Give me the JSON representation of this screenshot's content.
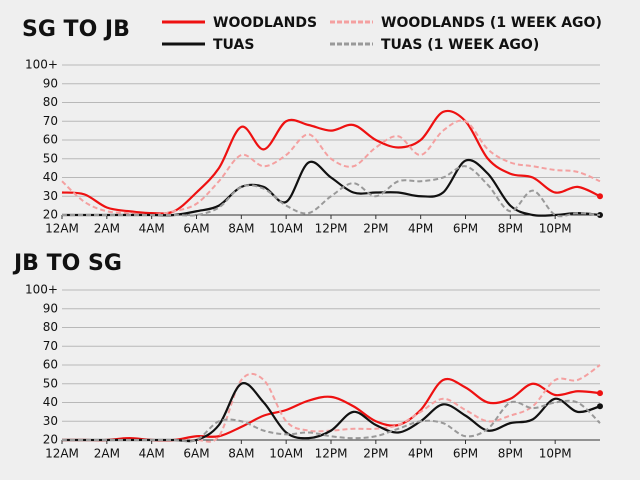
{
  "chart_data": [
    {
      "type": "line",
      "title": "SG TO JB",
      "x": [
        0,
        1,
        2,
        3,
        4,
        5,
        6,
        7,
        8,
        9,
        10,
        11,
        12,
        13,
        14,
        15,
        16,
        17,
        18,
        19,
        20,
        21,
        22,
        23,
        24
      ],
      "xlim": [
        0,
        24
      ],
      "xticks": [
        {
          "value": 0,
          "label": "12AM"
        },
        {
          "value": 2,
          "label": "2AM"
        },
        {
          "value": 4,
          "label": "4AM"
        },
        {
          "value": 6,
          "label": "6AM"
        },
        {
          "value": 8,
          "label": "8AM"
        },
        {
          "value": 10,
          "label": "10AM"
        },
        {
          "value": 12,
          "label": "12PM"
        },
        {
          "value": 14,
          "label": "2PM"
        },
        {
          "value": 16,
          "label": "4PM"
        },
        {
          "value": 18,
          "label": "6PM"
        },
        {
          "value": 20,
          "label": "8PM"
        },
        {
          "value": 22,
          "label": "10PM"
        }
      ],
      "ylim": [
        20,
        100
      ],
      "yticks": [
        20,
        30,
        40,
        50,
        60,
        70,
        80,
        90,
        {
          "value": 100,
          "label": "100+"
        }
      ],
      "grid": true,
      "series": [
        {
          "name": "WOODLANDS",
          "color": "#ee1111",
          "dashed": false,
          "values": [
            32,
            31,
            24,
            22,
            21,
            22,
            32,
            45,
            67,
            55,
            70,
            68,
            65,
            68,
            60,
            56,
            60,
            75,
            70,
            50,
            42,
            40,
            32,
            35,
            30
          ]
        },
        {
          "name": "WOODLANDS (1 WEEK AGO)",
          "color": "#f4a0a0",
          "dashed": true,
          "values": [
            38,
            27,
            22,
            21,
            20,
            22,
            26,
            38,
            52,
            46,
            52,
            63,
            50,
            46,
            56,
            62,
            52,
            65,
            70,
            55,
            48,
            46,
            44,
            43,
            38
          ]
        },
        {
          "name": "TUAS",
          "color": "#111111",
          "dashed": false,
          "values": [
            20,
            20,
            20,
            20,
            20,
            20,
            22,
            25,
            35,
            35,
            27,
            48,
            40,
            32,
            32,
            32,
            30,
            32,
            49,
            42,
            25,
            20,
            20,
            21,
            20
          ]
        },
        {
          "name": "TUAS (1 WEEK AGO)",
          "color": "#999999",
          "dashed": true,
          "values": [
            20,
            20,
            20,
            20,
            20,
            20,
            20,
            24,
            35,
            34,
            25,
            21,
            30,
            37,
            30,
            38,
            38,
            40,
            46,
            36,
            22,
            33,
            20,
            21,
            20
          ]
        }
      ]
    },
    {
      "type": "line",
      "title": "JB TO SG",
      "x": [
        0,
        1,
        2,
        3,
        4,
        5,
        6,
        7,
        8,
        9,
        10,
        11,
        12,
        13,
        14,
        15,
        16,
        17,
        18,
        19,
        20,
        21,
        22,
        23,
        24
      ],
      "xlim": [
        0,
        24
      ],
      "xticks": [
        {
          "value": 0,
          "label": "12AM"
        },
        {
          "value": 2,
          "label": "2AM"
        },
        {
          "value": 4,
          "label": "4AM"
        },
        {
          "value": 6,
          "label": "6AM"
        },
        {
          "value": 8,
          "label": "8AM"
        },
        {
          "value": 10,
          "label": "10AM"
        },
        {
          "value": 12,
          "label": "12PM"
        },
        {
          "value": 14,
          "label": "2PM"
        },
        {
          "value": 16,
          "label": "4PM"
        },
        {
          "value": 18,
          "label": "6PM"
        },
        {
          "value": 20,
          "label": "8PM"
        },
        {
          "value": 22,
          "label": "10PM"
        }
      ],
      "ylim": [
        20,
        100
      ],
      "yticks": [
        20,
        30,
        40,
        50,
        60,
        70,
        80,
        90,
        {
          "value": 100,
          "label": "100+"
        }
      ],
      "grid": true,
      "series": [
        {
          "color": "#ee1111",
          "dashed": false,
          "values": [
            20,
            20,
            20,
            21,
            20,
            20,
            22,
            22,
            27,
            33,
            36,
            41,
            43,
            38,
            30,
            28,
            36,
            52,
            48,
            40,
            42,
            50,
            44,
            46,
            45
          ]
        },
        {
          "color": "#f4a0a0",
          "dashed": true,
          "values": [
            20,
            20,
            20,
            20,
            20,
            20,
            20,
            22,
            52,
            52,
            30,
            25,
            25,
            26,
            26,
            28,
            35,
            42,
            36,
            30,
            33,
            38,
            52,
            52,
            60
          ]
        },
        {
          "color": "#111111",
          "dashed": false,
          "values": [
            20,
            20,
            20,
            20,
            20,
            20,
            20,
            28,
            50,
            40,
            24,
            21,
            25,
            35,
            28,
            24,
            30,
            39,
            33,
            25,
            29,
            31,
            42,
            35,
            38
          ]
        },
        {
          "color": "#999999",
          "dashed": true,
          "values": [
            20,
            20,
            20,
            20,
            20,
            20,
            20,
            30,
            30,
            25,
            23,
            24,
            22,
            21,
            22,
            26,
            30,
            29,
            22,
            26,
            40,
            37,
            40,
            40,
            29
          ]
        }
      ]
    }
  ]
}
